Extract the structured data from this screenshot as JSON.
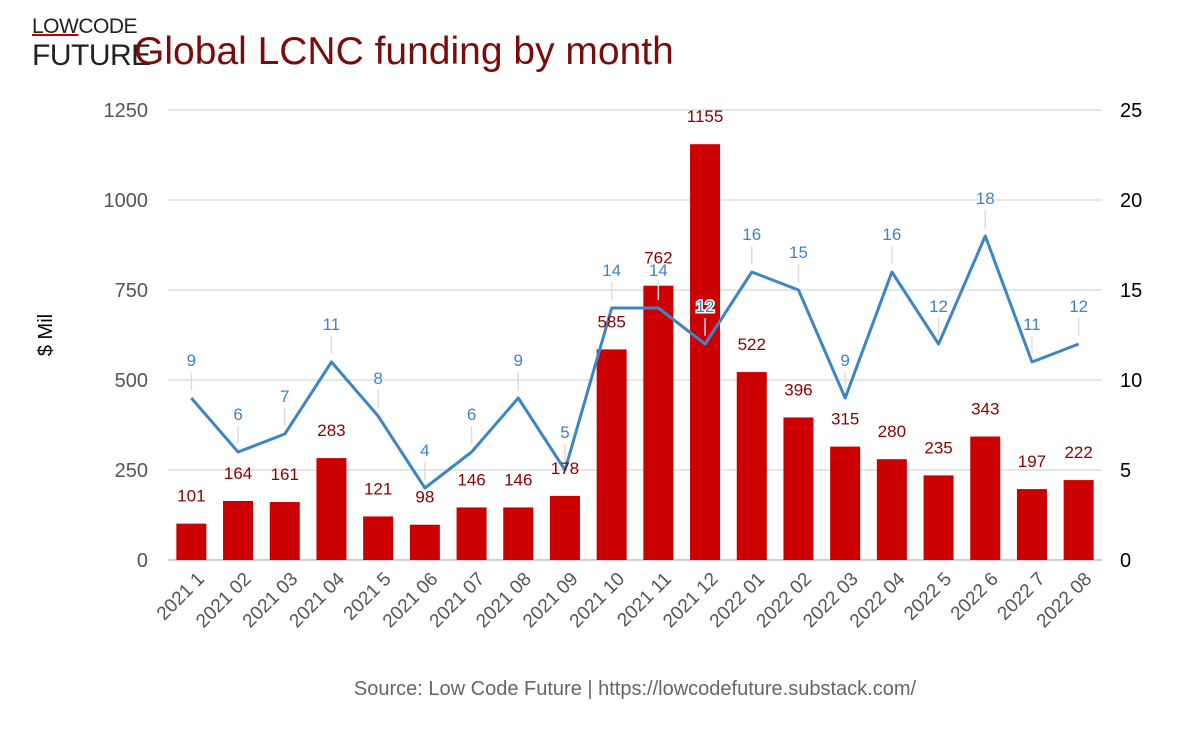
{
  "logo": {
    "line1_a": "LOW",
    "line1_b": "CODE",
    "line2": "FUTURE"
  },
  "colors": {
    "bar": "#cc0000",
    "line": "#3d85c6",
    "title": "#7b0c0c",
    "grid": "#cccccc"
  },
  "chart_data": {
    "type": "bar",
    "title": "Global LCNC funding by month",
    "source": "Source: Low Code Future | https://lowcodefuture.substack.com/",
    "ylabel": "$ Mil",
    "ylim": [
      0,
      1250
    ],
    "yticks": [
      0,
      250,
      500,
      750,
      1000,
      1250
    ],
    "y2lim": [
      0,
      25
    ],
    "y2ticks": [
      0,
      5,
      10,
      15,
      20,
      25
    ],
    "grid": true,
    "categories": [
      "2021 1",
      "2021 02",
      "2021 03",
      "2021 04",
      "2021 5",
      "2021 06",
      "2021 07",
      "2021 08",
      "2021 09",
      "2021 10",
      "2021 11",
      "2021 12",
      "2022 01",
      "2022 02",
      "2022 03",
      "2022 04",
      "2022 5",
      "2022 6",
      "2022 7",
      "2022 08"
    ],
    "series": [
      {
        "type": "bar",
        "axis": "left",
        "values": [
          101,
          164,
          161,
          283,
          121,
          98,
          146,
          146,
          178,
          585,
          762,
          1155,
          522,
          396,
          315,
          280,
          235,
          343,
          197,
          222
        ]
      },
      {
        "type": "line",
        "axis": "right",
        "values": [
          9,
          6,
          7,
          11,
          8,
          4,
          6,
          9,
          5,
          14,
          14,
          12,
          16,
          15,
          9,
          16,
          12,
          18,
          11,
          12
        ]
      }
    ]
  }
}
